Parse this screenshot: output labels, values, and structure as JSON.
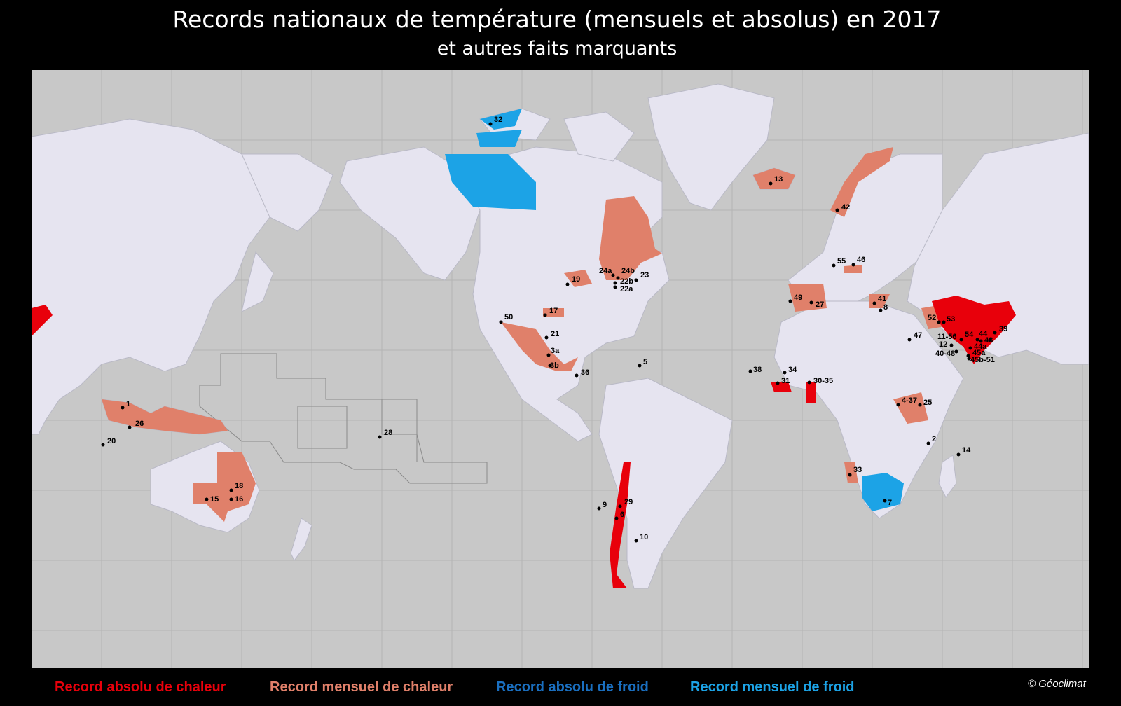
{
  "title": "Records nationaux de température (mensuels et absolus) en 2017",
  "subtitle": "et autres faits marquants",
  "colors": {
    "record_absolu_chaleur": "#e8000b",
    "record_mensuel_chaleur": "#e0806a",
    "record_absolu_froid": "#1a6fc0",
    "record_mensuel_froid": "#1ca3e6",
    "land": "#e6e4f0",
    "ocean": "#c8c8c8"
  },
  "legend": [
    {
      "label": "Record absolu de chaleur",
      "color": "#e8000b"
    },
    {
      "label": "Record mensuel de chaleur",
      "color": "#e0806a"
    },
    {
      "label": "Record absolu de froid",
      "color": "#1a6fc0"
    },
    {
      "label": "Record mensuel de froid",
      "color": "#1ca3e6"
    }
  ],
  "credit": "© Géoclimat",
  "markers": [
    {
      "text": "1"
    },
    {
      "text": "26"
    },
    {
      "text": "20"
    },
    {
      "text": "28"
    },
    {
      "text": "18"
    },
    {
      "text": "15"
    },
    {
      "text": "16"
    },
    {
      "text": "32"
    },
    {
      "text": "13"
    },
    {
      "text": "42"
    },
    {
      "text": "24a"
    },
    {
      "text": "24b"
    },
    {
      "text": "23"
    },
    {
      "text": "22b"
    },
    {
      "text": "22a"
    },
    {
      "text": "19"
    },
    {
      "text": "17"
    },
    {
      "text": "50"
    },
    {
      "text": "21"
    },
    {
      "text": "3a"
    },
    {
      "text": "3b"
    },
    {
      "text": "36"
    },
    {
      "text": "5"
    },
    {
      "text": "9"
    },
    {
      "text": "29"
    },
    {
      "text": "6"
    },
    {
      "text": "10"
    },
    {
      "text": "55"
    },
    {
      "text": "46"
    },
    {
      "text": "49"
    },
    {
      "text": "27"
    },
    {
      "text": "41"
    },
    {
      "text": "8"
    },
    {
      "text": "52"
    },
    {
      "text": "53"
    },
    {
      "text": "39"
    },
    {
      "text": "47"
    },
    {
      "text": "11-56"
    },
    {
      "text": "54"
    },
    {
      "text": "44"
    },
    {
      "text": "43"
    },
    {
      "text": "12"
    },
    {
      "text": "44a"
    },
    {
      "text": "40-48"
    },
    {
      "text": "45a"
    },
    {
      "text": "45b-51"
    },
    {
      "text": "38"
    },
    {
      "text": "34"
    },
    {
      "text": "31"
    },
    {
      "text": "30-35"
    },
    {
      "text": "4-37"
    },
    {
      "text": "25"
    },
    {
      "text": "2"
    },
    {
      "text": "14"
    },
    {
      "text": "33"
    },
    {
      "text": "7"
    }
  ]
}
